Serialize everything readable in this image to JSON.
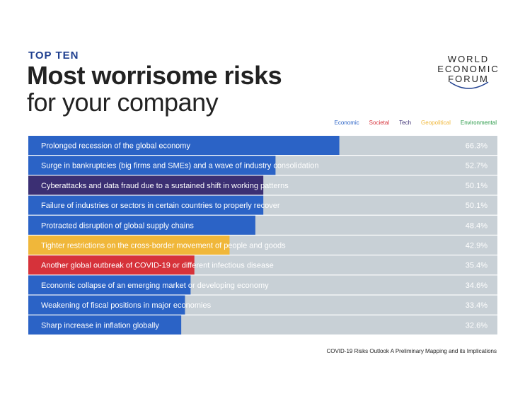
{
  "header": {
    "kicker": "TOP TEN",
    "title_line1": "Most worrisome risks",
    "title_line2": "for your company"
  },
  "logo": {
    "line1": "WORLD",
    "line2": "ECONOMIC",
    "line3": "FORUM"
  },
  "legend": [
    {
      "label": "Economic",
      "color": "#2b63c6"
    },
    {
      "label": "Societal",
      "color": "#d6323a"
    },
    {
      "label": "Tech",
      "color": "#3b2f73"
    },
    {
      "label": "Geopolitical",
      "color": "#f0b73a"
    },
    {
      "label": "Environmental",
      "color": "#2a9a48"
    }
  ],
  "colors": {
    "track": "#c8d0d6",
    "value_text": "#ffffff"
  },
  "chart_data": {
    "type": "bar",
    "orientation": "horizontal",
    "xlim": [
      0,
      100
    ],
    "categories": [
      "Prolonged recession of the global economy",
      "Surge in bankruptcies (big firms and SMEs) and a wave of industry consolidation",
      "Cyberattacks and data fraud due to a sustained shift in working patterns",
      "Failure of industries or sectors in certain countries to properly recover",
      "Protracted disruption of global supply chains",
      "Tighter restrictions on the cross-border movement of people and goods",
      "Another global outbreak of COVID-19 or different infectious disease",
      "Economic collapse of an emerging market or developing economy",
      "Weakening of fiscal positions in major economies",
      "Sharp increase in inflation globally"
    ],
    "values": [
      66.3,
      52.7,
      50.1,
      50.1,
      48.4,
      42.9,
      35.4,
      34.6,
      33.4,
      32.6
    ],
    "labels": [
      "66.3%",
      "52.7%",
      "50.1%",
      "50.1%",
      "48.4%",
      "42.9%",
      "35.4%",
      "34.6%",
      "33.4%",
      "32.6%"
    ],
    "category_type": [
      "Economic",
      "Economic",
      "Tech",
      "Economic",
      "Economic",
      "Geopolitical",
      "Societal",
      "Economic",
      "Economic",
      "Economic"
    ]
  },
  "footer": {
    "source": "COVID-19 Risks Outlook A Preliminary Mapping and its Implications"
  }
}
